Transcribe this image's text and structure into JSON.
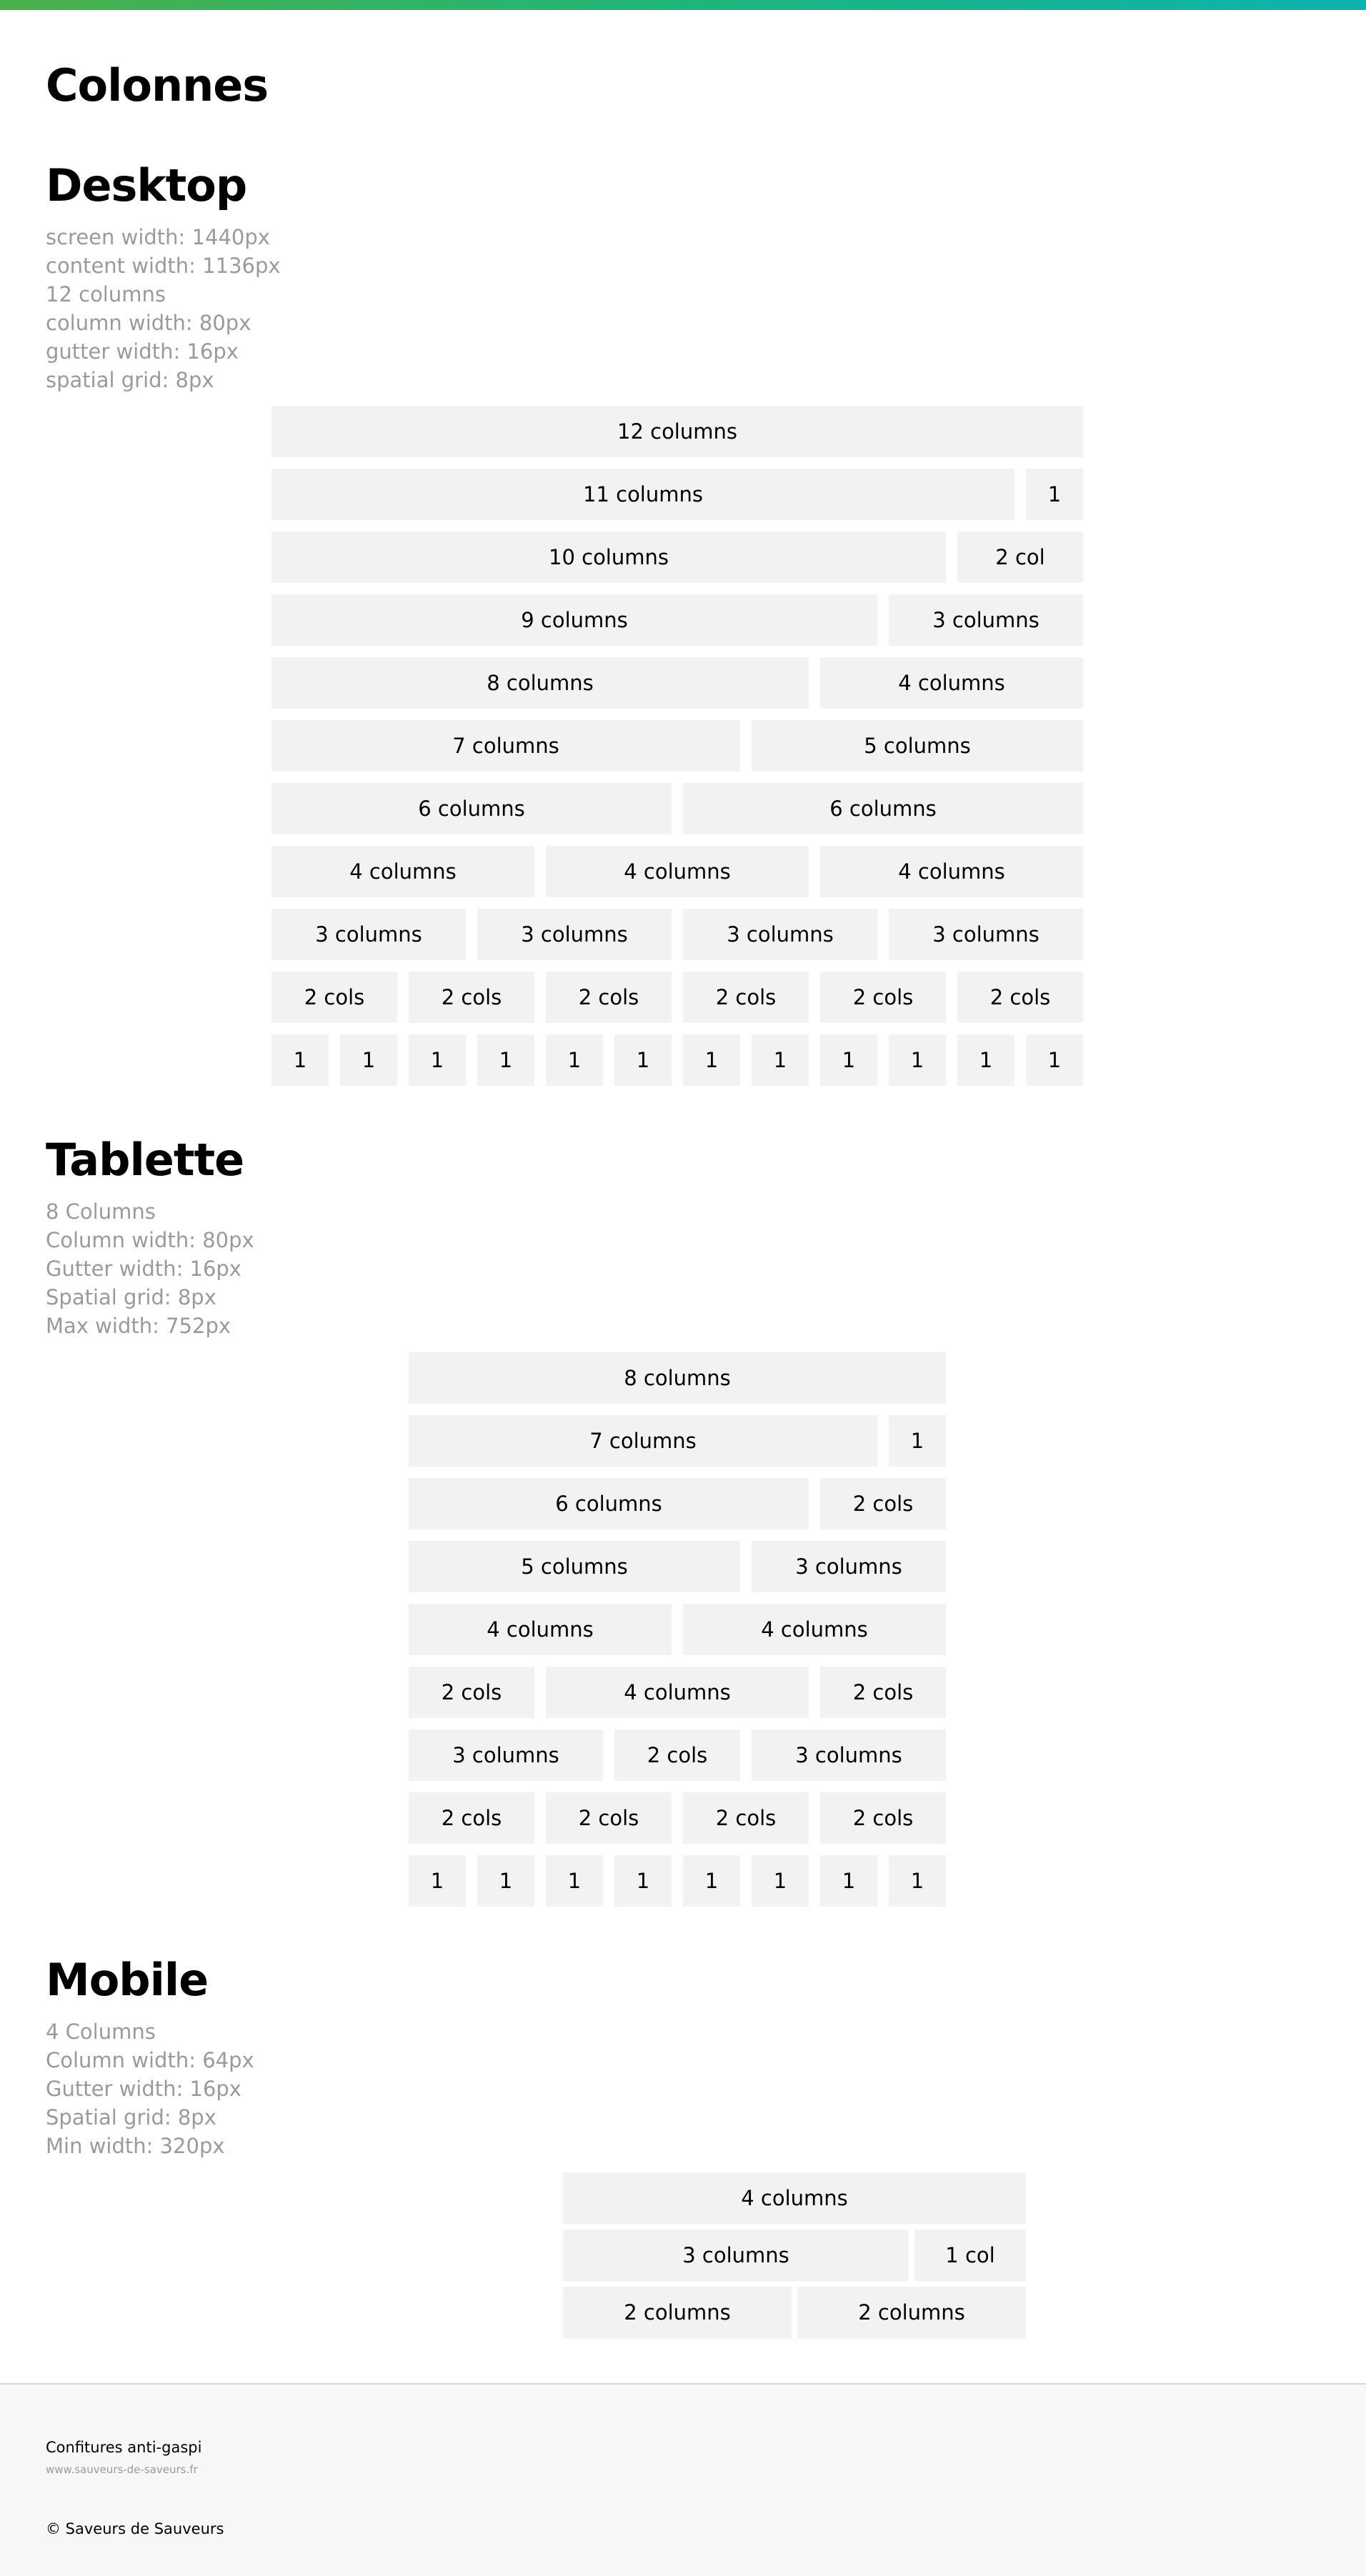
{
  "page": {
    "title": "Colonnes"
  },
  "desktop": {
    "title": "Desktop",
    "specs": [
      "screen width: 1440px",
      "content width: 1136px",
      "12 columns",
      "column width: 80px",
      "gutter width: 16px",
      "spatial grid: 8px"
    ],
    "columns": 12,
    "rows": [
      [
        {
          "label": "12 columns",
          "span": 12
        }
      ],
      [
        {
          "label": "11 columns",
          "span": 11
        },
        {
          "label": "1",
          "span": 1
        }
      ],
      [
        {
          "label": "10 columns",
          "span": 10
        },
        {
          "label": "2 col",
          "span": 2
        }
      ],
      [
        {
          "label": "9 columns",
          "span": 9
        },
        {
          "label": "3 columns",
          "span": 3
        }
      ],
      [
        {
          "label": "8 columns",
          "span": 8
        },
        {
          "label": "4 columns",
          "span": 4
        }
      ],
      [
        {
          "label": "7 columns",
          "span": 7
        },
        {
          "label": "5 columns",
          "span": 5
        }
      ],
      [
        {
          "label": "6 columns",
          "span": 6
        },
        {
          "label": "6 columns",
          "span": 6
        }
      ],
      [
        {
          "label": "4 columns",
          "span": 4
        },
        {
          "label": "4 columns",
          "span": 4
        },
        {
          "label": "4 columns",
          "span": 4
        }
      ],
      [
        {
          "label": "3 columns",
          "span": 3
        },
        {
          "label": "3 columns",
          "span": 3
        },
        {
          "label": "3 columns",
          "span": 3
        },
        {
          "label": "3 columns",
          "span": 3
        }
      ],
      [
        {
          "label": "2 cols",
          "span": 2
        },
        {
          "label": "2 cols",
          "span": 2
        },
        {
          "label": "2 cols",
          "span": 2
        },
        {
          "label": "2 cols",
          "span": 2
        },
        {
          "label": "2 cols",
          "span": 2
        },
        {
          "label": "2 cols",
          "span": 2
        }
      ],
      [
        {
          "label": "1",
          "span": 1
        },
        {
          "label": "1",
          "span": 1
        },
        {
          "label": "1",
          "span": 1
        },
        {
          "label": "1",
          "span": 1
        },
        {
          "label": "1",
          "span": 1
        },
        {
          "label": "1",
          "span": 1
        },
        {
          "label": "1",
          "span": 1
        },
        {
          "label": "1",
          "span": 1
        },
        {
          "label": "1",
          "span": 1
        },
        {
          "label": "1",
          "span": 1
        },
        {
          "label": "1",
          "span": 1
        },
        {
          "label": "1",
          "span": 1
        }
      ]
    ]
  },
  "tablet": {
    "title": "Tablette",
    "specs": [
      "8 Columns",
      "Column width: 80px",
      "Gutter width: 16px",
      "Spatial grid: 8px",
      "Max width: 752px"
    ],
    "columns": 8,
    "rows": [
      [
        {
          "label": "8 columns",
          "span": 8
        }
      ],
      [
        {
          "label": "7 columns",
          "span": 7
        },
        {
          "label": "1",
          "span": 1
        }
      ],
      [
        {
          "label": "6 columns",
          "span": 6
        },
        {
          "label": "2 cols",
          "span": 2
        }
      ],
      [
        {
          "label": "5 columns",
          "span": 5
        },
        {
          "label": "3 columns",
          "span": 3
        }
      ],
      [
        {
          "label": "4 columns",
          "span": 4
        },
        {
          "label": "4 columns",
          "span": 4
        }
      ],
      [
        {
          "label": "2 cols",
          "span": 2
        },
        {
          "label": "4 columns",
          "span": 4
        },
        {
          "label": "2 cols",
          "span": 2
        }
      ],
      [
        {
          "label": "3 columns",
          "span": 3
        },
        {
          "label": "2 cols",
          "span": 2
        },
        {
          "label": "3 columns",
          "span": 3
        }
      ],
      [
        {
          "label": "2 cols",
          "span": 2
        },
        {
          "label": "2 cols",
          "span": 2
        },
        {
          "label": "2 cols",
          "span": 2
        },
        {
          "label": "2 cols",
          "span": 2
        }
      ],
      [
        {
          "label": "1",
          "span": 1
        },
        {
          "label": "1",
          "span": 1
        },
        {
          "label": "1",
          "span": 1
        },
        {
          "label": "1",
          "span": 1
        },
        {
          "label": "1",
          "span": 1
        },
        {
          "label": "1",
          "span": 1
        },
        {
          "label": "1",
          "span": 1
        },
        {
          "label": "1",
          "span": 1
        }
      ]
    ]
  },
  "mobile": {
    "title": "Mobile",
    "specs": [
      "4 Columns",
      "Column width: 64px",
      "Gutter width: 16px",
      "Spatial grid: 8px",
      "Min width: 320px"
    ],
    "columns": 4,
    "rows": [
      [
        {
          "label": "4 columns",
          "span": 4
        }
      ],
      [
        {
          "label": "3 columns",
          "span": 3
        },
        {
          "label": "1 col",
          "span": 1
        }
      ],
      [
        {
          "label": "2 columns",
          "span": 2
        },
        {
          "label": "2 columns",
          "span": 2
        }
      ]
    ]
  },
  "footer": {
    "brand": "Confitures anti-gaspi",
    "link": "www.sauveurs-de-saveurs.fr",
    "copyright": "© Saveurs de Sauveurs"
  }
}
